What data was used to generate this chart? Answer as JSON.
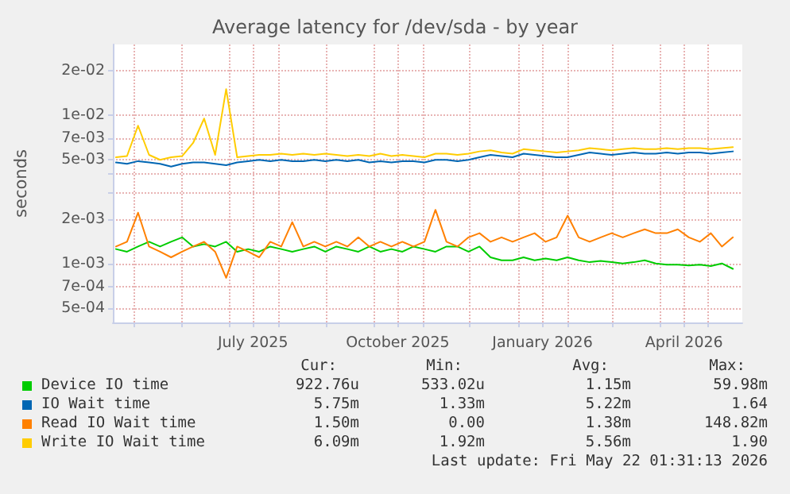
{
  "chart_data": {
    "type": "line",
    "title": "Average latency for /dev/sda - by year",
    "ylabel": "seconds",
    "log": "y",
    "grid": true,
    "legend": "bottom",
    "marker": "none",
    "line_style": "solid",
    "xlim": [
      "2025-04-18",
      "2026-05-23"
    ],
    "xticks": [
      {
        "value": "2025-05-01",
        "label": null
      },
      {
        "value": "2025-06-01",
        "label": null
      },
      {
        "value": "2025-07-01",
        "label": null
      },
      {
        "value": "2025-07-16",
        "label": "July 2025"
      },
      {
        "value": "2025-08-01",
        "label": null
      },
      {
        "value": "2025-09-01",
        "label": null
      },
      {
        "value": "2025-10-01",
        "label": null
      },
      {
        "value": "2025-10-16",
        "label": "October 2025"
      },
      {
        "value": "2025-11-01",
        "label": null
      },
      {
        "value": "2025-12-01",
        "label": null
      },
      {
        "value": "2026-01-01",
        "label": null
      },
      {
        "value": "2026-01-16",
        "label": "January 2026"
      },
      {
        "value": "2026-02-01",
        "label": null
      },
      {
        "value": "2026-03-01",
        "label": null
      },
      {
        "value": "2026-04-01",
        "label": null
      },
      {
        "value": "2026-04-16",
        "label": "April 2026"
      },
      {
        "value": "2026-05-01",
        "label": null
      }
    ],
    "ylim": [
      0.0004,
      0.03
    ],
    "yticks": [
      {
        "value": 0.0005,
        "label": "5e-04"
      },
      {
        "value": 0.0007,
        "label": "7e-04"
      },
      {
        "value": 0.001,
        "label": "1e-03"
      },
      {
        "value": 0.002,
        "label": "2e-03"
      },
      {
        "value": 0.003,
        "label": null
      },
      {
        "value": 0.004,
        "label": null
      },
      {
        "value": 0.005,
        "label": "5e-03"
      },
      {
        "value": 0.007,
        "label": "7e-03"
      },
      {
        "value": 0.01,
        "label": "1e-02"
      },
      {
        "value": 0.02,
        "label": "2e-02"
      }
    ],
    "x": [
      "2025-04-20",
      "2025-04-27",
      "2025-05-04",
      "2025-05-11",
      "2025-05-18",
      "2025-05-25",
      "2025-06-01",
      "2025-06-08",
      "2025-06-15",
      "2025-06-22",
      "2025-06-29",
      "2025-07-06",
      "2025-07-13",
      "2025-07-20",
      "2025-07-27",
      "2025-08-03",
      "2025-08-10",
      "2025-08-17",
      "2025-08-24",
      "2025-08-31",
      "2025-09-07",
      "2025-09-14",
      "2025-09-21",
      "2025-09-28",
      "2025-10-05",
      "2025-10-12",
      "2025-10-19",
      "2025-10-26",
      "2025-11-02",
      "2025-11-09",
      "2025-11-16",
      "2025-11-23",
      "2025-11-30",
      "2025-12-07",
      "2025-12-14",
      "2025-12-21",
      "2025-12-28",
      "2026-01-04",
      "2026-01-11",
      "2026-01-18",
      "2026-01-25",
      "2026-02-01",
      "2026-02-08",
      "2026-02-15",
      "2026-02-22",
      "2026-03-01",
      "2026-03-08",
      "2026-03-15",
      "2026-03-22",
      "2026-03-29",
      "2026-04-05",
      "2026-04-12",
      "2026-04-19",
      "2026-04-26",
      "2026-05-03",
      "2026-05-10",
      "2026-05-17"
    ],
    "series": [
      {
        "name": "Device IO time",
        "color": "#00cc00",
        "values": [
          0.00125,
          0.0012,
          0.0013,
          0.0014,
          0.0013,
          0.0014,
          0.0015,
          0.0013,
          0.00135,
          0.0013,
          0.0014,
          0.0012,
          0.00125,
          0.0012,
          0.0013,
          0.00125,
          0.0012,
          0.00125,
          0.0013,
          0.0012,
          0.0013,
          0.00125,
          0.0012,
          0.0013,
          0.0012,
          0.00125,
          0.0012,
          0.0013,
          0.00125,
          0.0012,
          0.0013,
          0.0013,
          0.0012,
          0.0013,
          0.0011,
          0.00105,
          0.00105,
          0.0011,
          0.00105,
          0.00108,
          0.00105,
          0.0011,
          0.00105,
          0.00102,
          0.00104,
          0.00102,
          0.001,
          0.00102,
          0.00105,
          0.001,
          0.00098,
          0.00098,
          0.00097,
          0.00098,
          0.00096,
          0.001,
          0.00092
        ]
      },
      {
        "name": "IO Wait time",
        "color": "#0066b3",
        "values": [
          0.0048,
          0.0047,
          0.0049,
          0.0048,
          0.0047,
          0.0045,
          0.0047,
          0.0048,
          0.0048,
          0.0047,
          0.0046,
          0.0048,
          0.0049,
          0.005,
          0.0049,
          0.005,
          0.0049,
          0.0049,
          0.005,
          0.0049,
          0.005,
          0.0049,
          0.005,
          0.0048,
          0.0049,
          0.0048,
          0.0049,
          0.0049,
          0.0048,
          0.005,
          0.005,
          0.0049,
          0.005,
          0.0052,
          0.0054,
          0.0053,
          0.0052,
          0.0055,
          0.0054,
          0.0053,
          0.0052,
          0.0052,
          0.0054,
          0.0056,
          0.0055,
          0.0054,
          0.0055,
          0.0056,
          0.0055,
          0.0055,
          0.0056,
          0.0055,
          0.0056,
          0.0056,
          0.0055,
          0.0056,
          0.0057
        ]
      },
      {
        "name": "Read IO Wait time",
        "color": "#ff8000",
        "values": [
          0.0013,
          0.0014,
          0.0022,
          0.0013,
          0.0012,
          0.0011,
          0.0012,
          0.0013,
          0.0014,
          0.0012,
          0.0008,
          0.0013,
          0.0012,
          0.0011,
          0.0014,
          0.0013,
          0.0019,
          0.0013,
          0.0014,
          0.0013,
          0.0014,
          0.0013,
          0.0015,
          0.0013,
          0.0014,
          0.0013,
          0.0014,
          0.0013,
          0.0014,
          0.0023,
          0.0014,
          0.0013,
          0.0015,
          0.0016,
          0.0014,
          0.0015,
          0.0014,
          0.0015,
          0.0016,
          0.0014,
          0.0015,
          0.0021,
          0.0015,
          0.0014,
          0.0015,
          0.0016,
          0.0015,
          0.0016,
          0.0017,
          0.0016,
          0.0016,
          0.0017,
          0.0015,
          0.0014,
          0.0016,
          0.0013,
          0.0015
        ]
      },
      {
        "name": "Write IO Wait time",
        "color": "#ffcc00",
        "values": [
          0.0052,
          0.0053,
          0.0085,
          0.0054,
          0.005,
          0.0052,
          0.0053,
          0.0065,
          0.0095,
          0.0054,
          0.015,
          0.0052,
          0.0053,
          0.0054,
          0.0054,
          0.0055,
          0.0054,
          0.0055,
          0.0054,
          0.0055,
          0.0054,
          0.0053,
          0.0054,
          0.0053,
          0.0055,
          0.0053,
          0.0054,
          0.0053,
          0.0052,
          0.0055,
          0.0055,
          0.0054,
          0.0055,
          0.0057,
          0.0058,
          0.0056,
          0.0055,
          0.0059,
          0.0058,
          0.0057,
          0.0056,
          0.0057,
          0.0058,
          0.006,
          0.0059,
          0.0058,
          0.0059,
          0.006,
          0.0059,
          0.0059,
          0.006,
          0.0059,
          0.006,
          0.006,
          0.0059,
          0.006,
          0.0061
        ]
      }
    ],
    "annotations": [
      "Cur:",
      "Min:",
      "Avg:",
      "Max:",
      "922.76u",
      "533.02u",
      "1.15m",
      "59.98m",
      "5.75m",
      "1.33m",
      "5.22m",
      "1.64",
      "1.50m",
      "0.00",
      "1.38m",
      "148.82m",
      "6.09m",
      "1.92m",
      "5.56m",
      "1.90",
      "Last update: Fri May 22 01:31:13 2026"
    ]
  }
}
